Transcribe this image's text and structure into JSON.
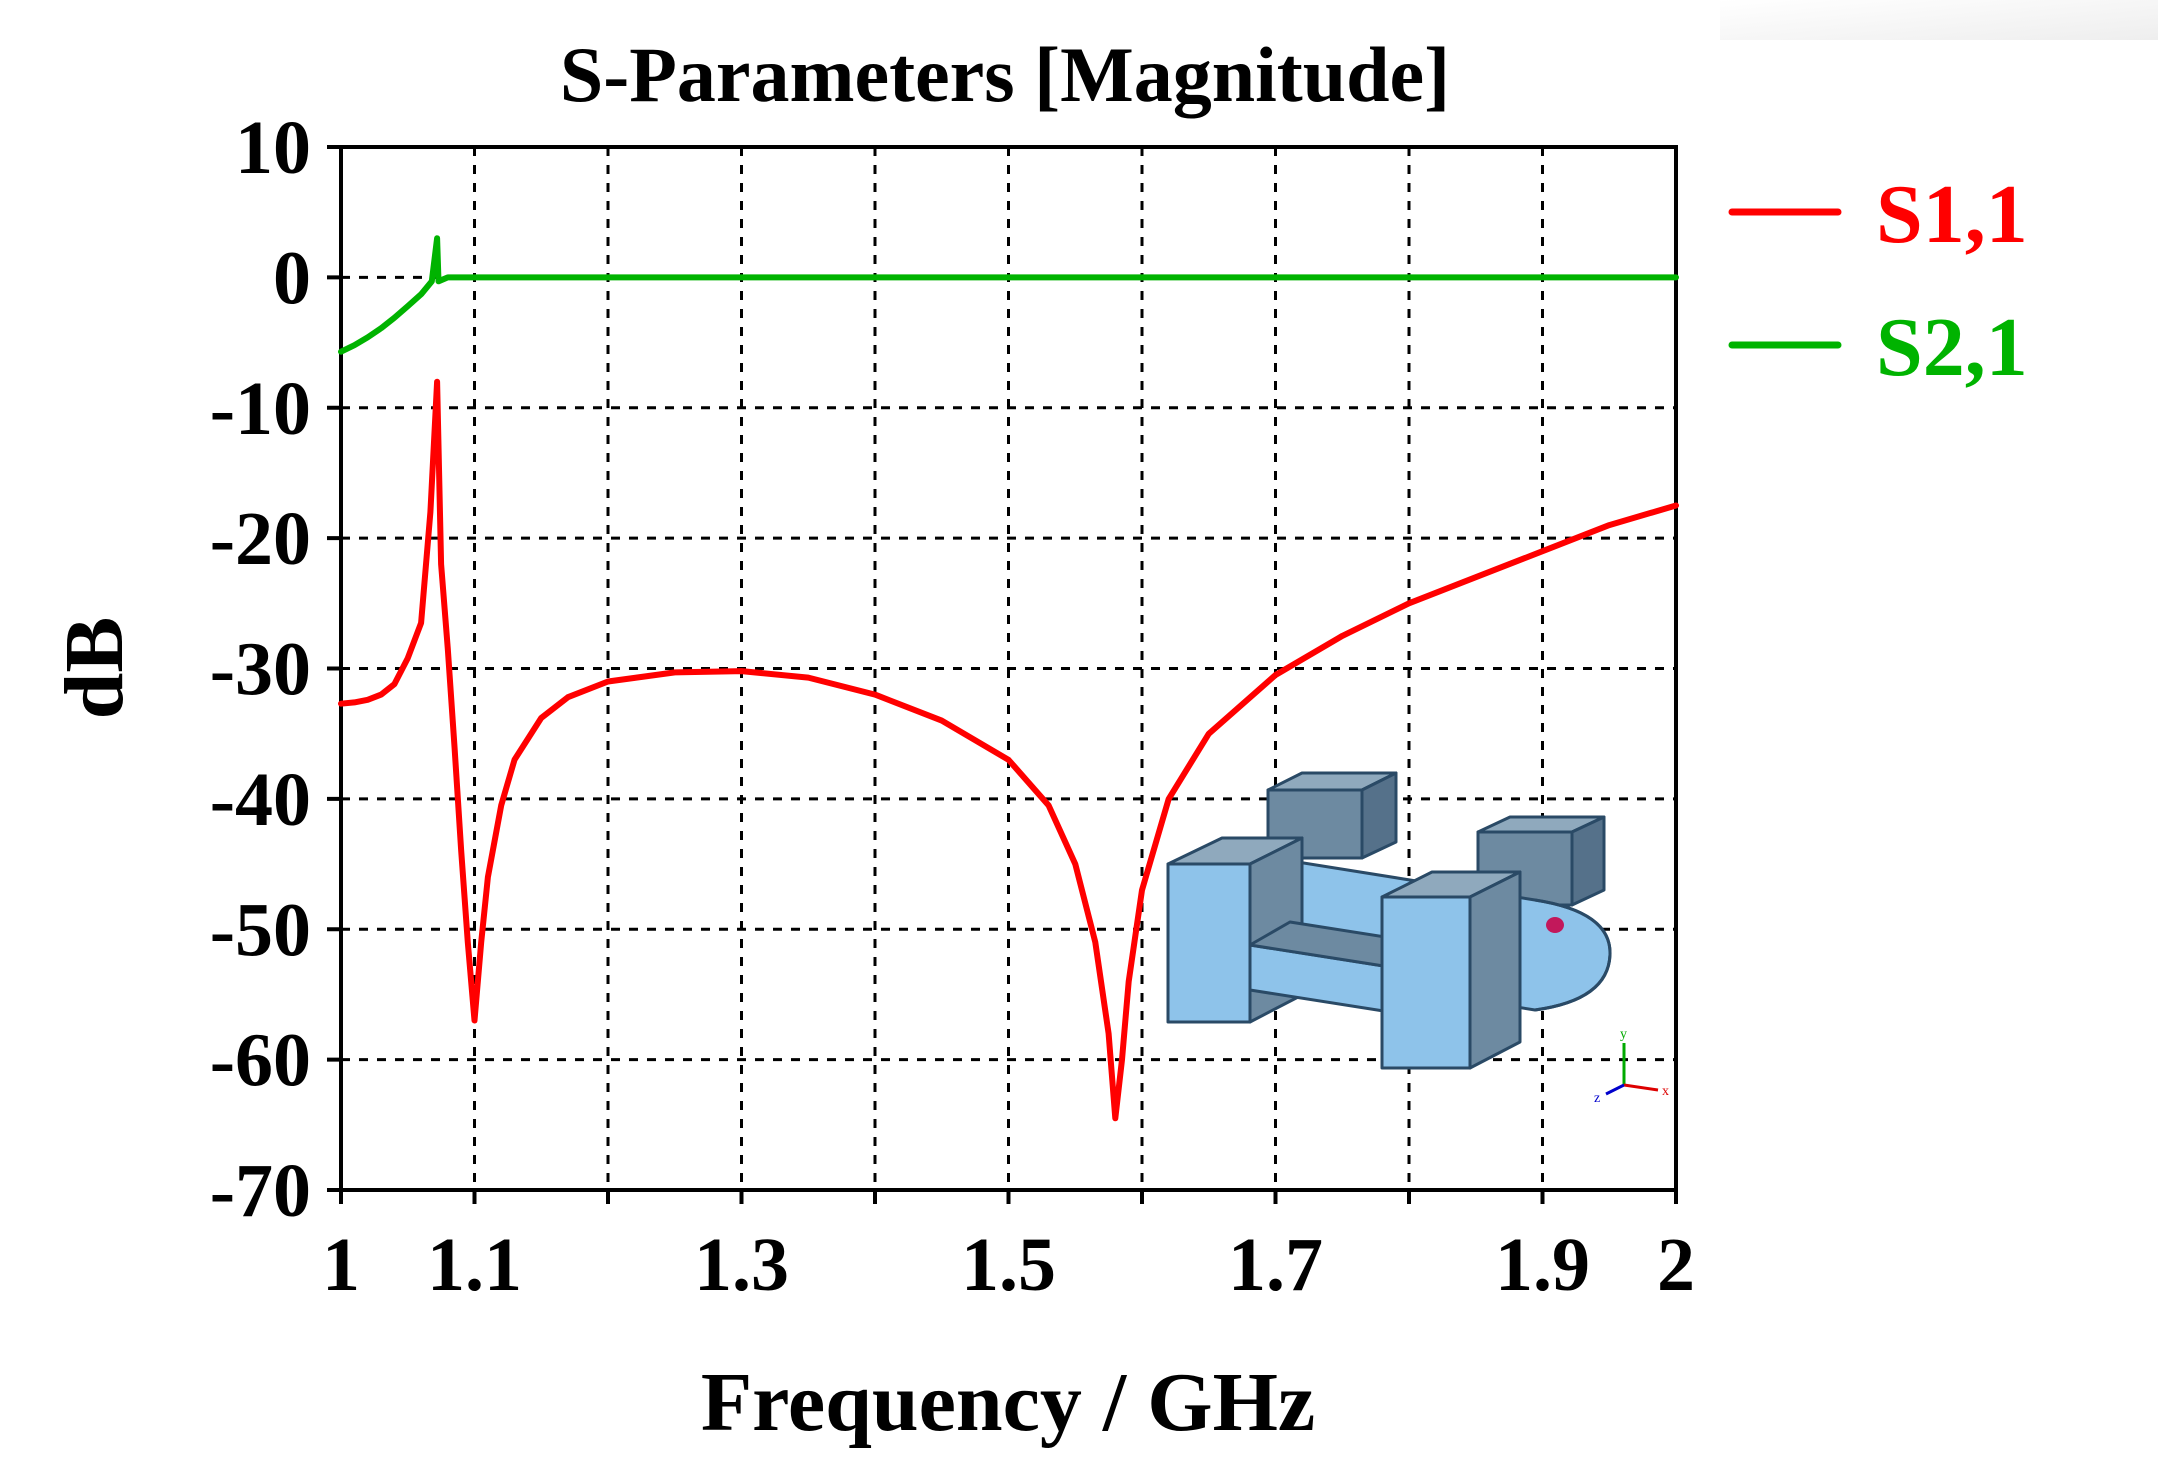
{
  "chart_data": {
    "type": "line",
    "title": "S-Parameters [Magnitude]",
    "xlabel": "Frequency / GHz",
    "ylabel": "dB",
    "xlim": [
      1,
      2
    ],
    "ylim": [
      -70,
      10
    ],
    "x_ticks": [
      {
        "value": 1,
        "label": "1"
      },
      {
        "value": 1.1,
        "label": "1.1"
      },
      {
        "value": 1.3,
        "label": "1.3"
      },
      {
        "value": 1.5,
        "label": "1.5"
      },
      {
        "value": 1.7,
        "label": "1.7"
      },
      {
        "value": 1.9,
        "label": "1.9"
      },
      {
        "value": 2,
        "label": "2"
      }
    ],
    "x_grid": [
      1.1,
      1.2,
      1.3,
      1.4,
      1.5,
      1.6,
      1.7,
      1.8,
      1.9
    ],
    "y_ticks": [
      {
        "value": 10,
        "label": "10"
      },
      {
        "value": 0,
        "label": "0"
      },
      {
        "value": -10,
        "label": "-10"
      },
      {
        "value": -20,
        "label": "-20"
      },
      {
        "value": -30,
        "label": "-30"
      },
      {
        "value": -40,
        "label": "-40"
      },
      {
        "value": -50,
        "label": "-50"
      },
      {
        "value": -60,
        "label": "-60"
      },
      {
        "value": -70,
        "label": "-70"
      }
    ],
    "grid": true,
    "legend_position": "right, outside top",
    "series": [
      {
        "name": "S1,1",
        "color": "#ff0000",
        "points": [
          [
            1.0,
            -32.7
          ],
          [
            1.01,
            -32.6
          ],
          [
            1.02,
            -32.4
          ],
          [
            1.03,
            -32.0
          ],
          [
            1.04,
            -31.2
          ],
          [
            1.05,
            -29.2
          ],
          [
            1.06,
            -26.5
          ],
          [
            1.067,
            -18.0
          ],
          [
            1.072,
            -8.0
          ],
          [
            1.075,
            -22.0
          ],
          [
            1.08,
            -28.5
          ],
          [
            1.085,
            -36.0
          ],
          [
            1.09,
            -44.0
          ],
          [
            1.095,
            -51.0
          ],
          [
            1.1,
            -57.0
          ],
          [
            1.105,
            -51.0
          ],
          [
            1.11,
            -46.0
          ],
          [
            1.12,
            -40.5
          ],
          [
            1.13,
            -37.0
          ],
          [
            1.15,
            -33.8
          ],
          [
            1.17,
            -32.2
          ],
          [
            1.2,
            -31.0
          ],
          [
            1.25,
            -30.3
          ],
          [
            1.3,
            -30.2
          ],
          [
            1.35,
            -30.7
          ],
          [
            1.4,
            -32.0
          ],
          [
            1.45,
            -34.0
          ],
          [
            1.5,
            -37.0
          ],
          [
            1.53,
            -40.5
          ],
          [
            1.55,
            -45.0
          ],
          [
            1.565,
            -51.0
          ],
          [
            1.575,
            -58.0
          ],
          [
            1.58,
            -64.5
          ],
          [
            1.585,
            -60.0
          ],
          [
            1.59,
            -54.0
          ],
          [
            1.6,
            -47.0
          ],
          [
            1.62,
            -40.0
          ],
          [
            1.65,
            -35.0
          ],
          [
            1.7,
            -30.5
          ],
          [
            1.75,
            -27.5
          ],
          [
            1.8,
            -25.0
          ],
          [
            1.85,
            -23.0
          ],
          [
            1.9,
            -21.0
          ],
          [
            1.95,
            -19.0
          ],
          [
            2.0,
            -17.5
          ]
        ]
      },
      {
        "name": "S2,1",
        "color": "#00b300",
        "points": [
          [
            1.0,
            -5.7
          ],
          [
            1.01,
            -5.2
          ],
          [
            1.02,
            -4.6
          ],
          [
            1.03,
            -3.9
          ],
          [
            1.04,
            -3.1
          ],
          [
            1.05,
            -2.2
          ],
          [
            1.06,
            -1.3
          ],
          [
            1.068,
            -0.3
          ],
          [
            1.072,
            3.0
          ],
          [
            1.073,
            -0.3
          ],
          [
            1.08,
            0.0
          ],
          [
            1.2,
            0.0
          ],
          [
            1.4,
            0.0
          ],
          [
            1.6,
            0.0
          ],
          [
            1.8,
            0.0
          ],
          [
            2.0,
            0.0
          ]
        ]
      }
    ]
  }
}
